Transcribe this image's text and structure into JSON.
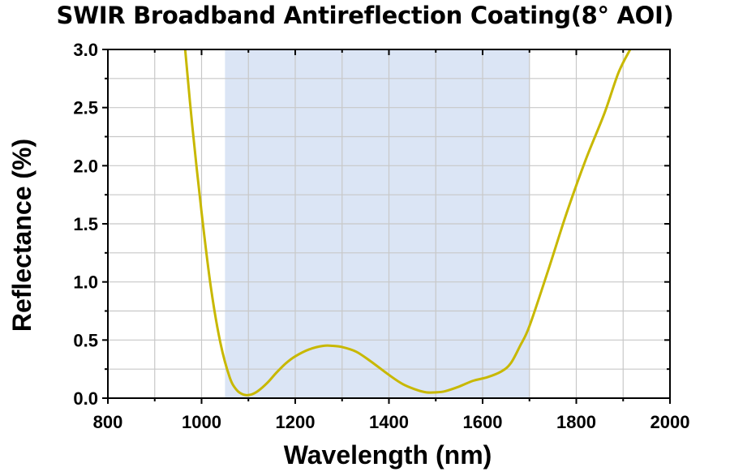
{
  "chart_data": {
    "type": "line",
    "title": "SWIR Broadband Antireflection Coating(8° AOI)",
    "xlabel": "Wavelength (nm)",
    "ylabel": "Reflectance (%)",
    "xlim": [
      800,
      2000
    ],
    "ylim": [
      0,
      3.0
    ],
    "x_ticks": [
      800,
      1000,
      1200,
      1400,
      1600,
      1800,
      2000
    ],
    "x_tick_labels": [
      "800",
      "1000",
      "1200",
      "1400",
      "1600",
      "1800",
      "2000"
    ],
    "y_ticks": [
      0,
      0.5,
      1.0,
      1.5,
      2.0,
      2.5,
      3.0
    ],
    "y_tick_labels": [
      "0.0",
      "0.5",
      "1.0",
      "1.5",
      "2.0",
      "2.5",
      "3.0"
    ],
    "grid": true,
    "highlight_band": {
      "x_start": 1050,
      "x_end": 1700,
      "color": "#dbe5f5"
    },
    "series": [
      {
        "color": "#c8b800",
        "x": [
          965,
          980,
          1000,
          1020,
          1040,
          1060,
          1075,
          1090,
          1105,
          1120,
          1140,
          1160,
          1180,
          1200,
          1230,
          1260,
          1280,
          1300,
          1330,
          1360,
          1400,
          1430,
          1460,
          1480,
          1500,
          1520,
          1550,
          1580,
          1610,
          1640,
          1660,
          1680,
          1700,
          1740,
          1780,
          1820,
          1860,
          1890,
          1915
        ],
        "y": [
          3.0,
          2.35,
          1.6,
          0.95,
          0.48,
          0.18,
          0.07,
          0.03,
          0.03,
          0.06,
          0.13,
          0.22,
          0.3,
          0.36,
          0.42,
          0.45,
          0.45,
          0.44,
          0.4,
          0.32,
          0.2,
          0.12,
          0.07,
          0.05,
          0.05,
          0.06,
          0.1,
          0.15,
          0.18,
          0.23,
          0.3,
          0.45,
          0.62,
          1.1,
          1.6,
          2.05,
          2.45,
          2.8,
          3.0
        ]
      }
    ]
  }
}
